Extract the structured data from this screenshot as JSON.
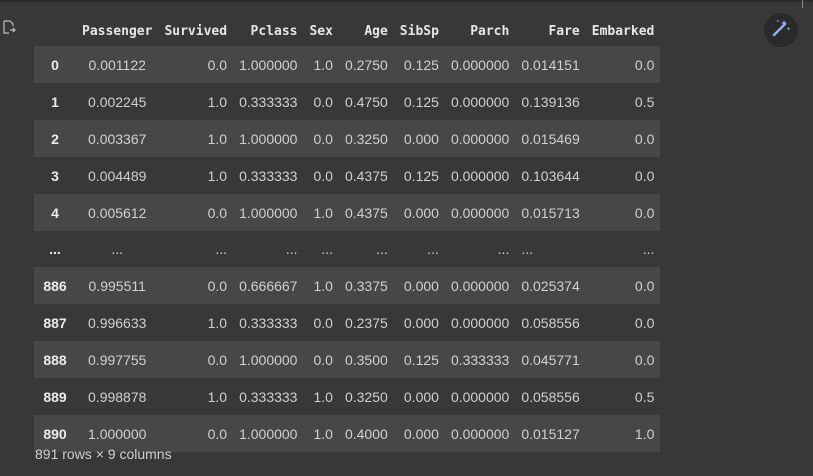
{
  "output": {
    "columns": [
      "Passenger",
      "Survived",
      "Pclass",
      "Sex",
      "Age",
      "SibSp",
      "Parch",
      "Fare",
      "Embarked"
    ],
    "rows": [
      {
        "index": "0",
        "cells": [
          "0.001122",
          "0.0",
          "1.000000",
          "1.0",
          "0.2750",
          "0.125",
          "0.000000",
          "0.014151",
          "0.0"
        ]
      },
      {
        "index": "1",
        "cells": [
          "0.002245",
          "1.0",
          "0.333333",
          "0.0",
          "0.4750",
          "0.125",
          "0.000000",
          "0.139136",
          "0.5"
        ]
      },
      {
        "index": "2",
        "cells": [
          "0.003367",
          "1.0",
          "1.000000",
          "0.0",
          "0.3250",
          "0.000",
          "0.000000",
          "0.015469",
          "0.0"
        ]
      },
      {
        "index": "3",
        "cells": [
          "0.004489",
          "1.0",
          "0.333333",
          "0.0",
          "0.4375",
          "0.125",
          "0.000000",
          "0.103644",
          "0.0"
        ]
      },
      {
        "index": "4",
        "cells": [
          "0.005612",
          "0.0",
          "1.000000",
          "1.0",
          "0.4375",
          "0.000",
          "0.000000",
          "0.015713",
          "0.0"
        ]
      },
      {
        "index": "...",
        "cells": [
          "...",
          "...",
          "...",
          "...",
          "...",
          "...",
          "...",
          "...",
          "..."
        ]
      },
      {
        "index": "886",
        "cells": [
          "0.995511",
          "0.0",
          "0.666667",
          "1.0",
          "0.3375",
          "0.000",
          "0.000000",
          "0.025374",
          "0.0"
        ]
      },
      {
        "index": "887",
        "cells": [
          "0.996633",
          "1.0",
          "0.333333",
          "0.0",
          "0.2375",
          "0.000",
          "0.000000",
          "0.058556",
          "0.0"
        ]
      },
      {
        "index": "888",
        "cells": [
          "0.997755",
          "0.0",
          "1.000000",
          "0.0",
          "0.3500",
          "0.125",
          "0.333333",
          "0.045771",
          "0.0"
        ]
      },
      {
        "index": "889",
        "cells": [
          "0.998878",
          "1.0",
          "0.333333",
          "1.0",
          "0.3250",
          "0.000",
          "0.000000",
          "0.058556",
          "0.5"
        ]
      },
      {
        "index": "890",
        "cells": [
          "1.000000",
          "0.0",
          "1.000000",
          "1.0",
          "0.4000",
          "0.000",
          "0.000000",
          "0.015127",
          "1.0"
        ]
      }
    ],
    "footer": "891 rows × 9 columns"
  },
  "icons": {
    "output": "output-redirect-icon",
    "magic": "magic-wand-icon"
  },
  "colors": {
    "background": "#383838",
    "stripe": "#474747",
    "header_text": "#e6e6e6"
  }
}
